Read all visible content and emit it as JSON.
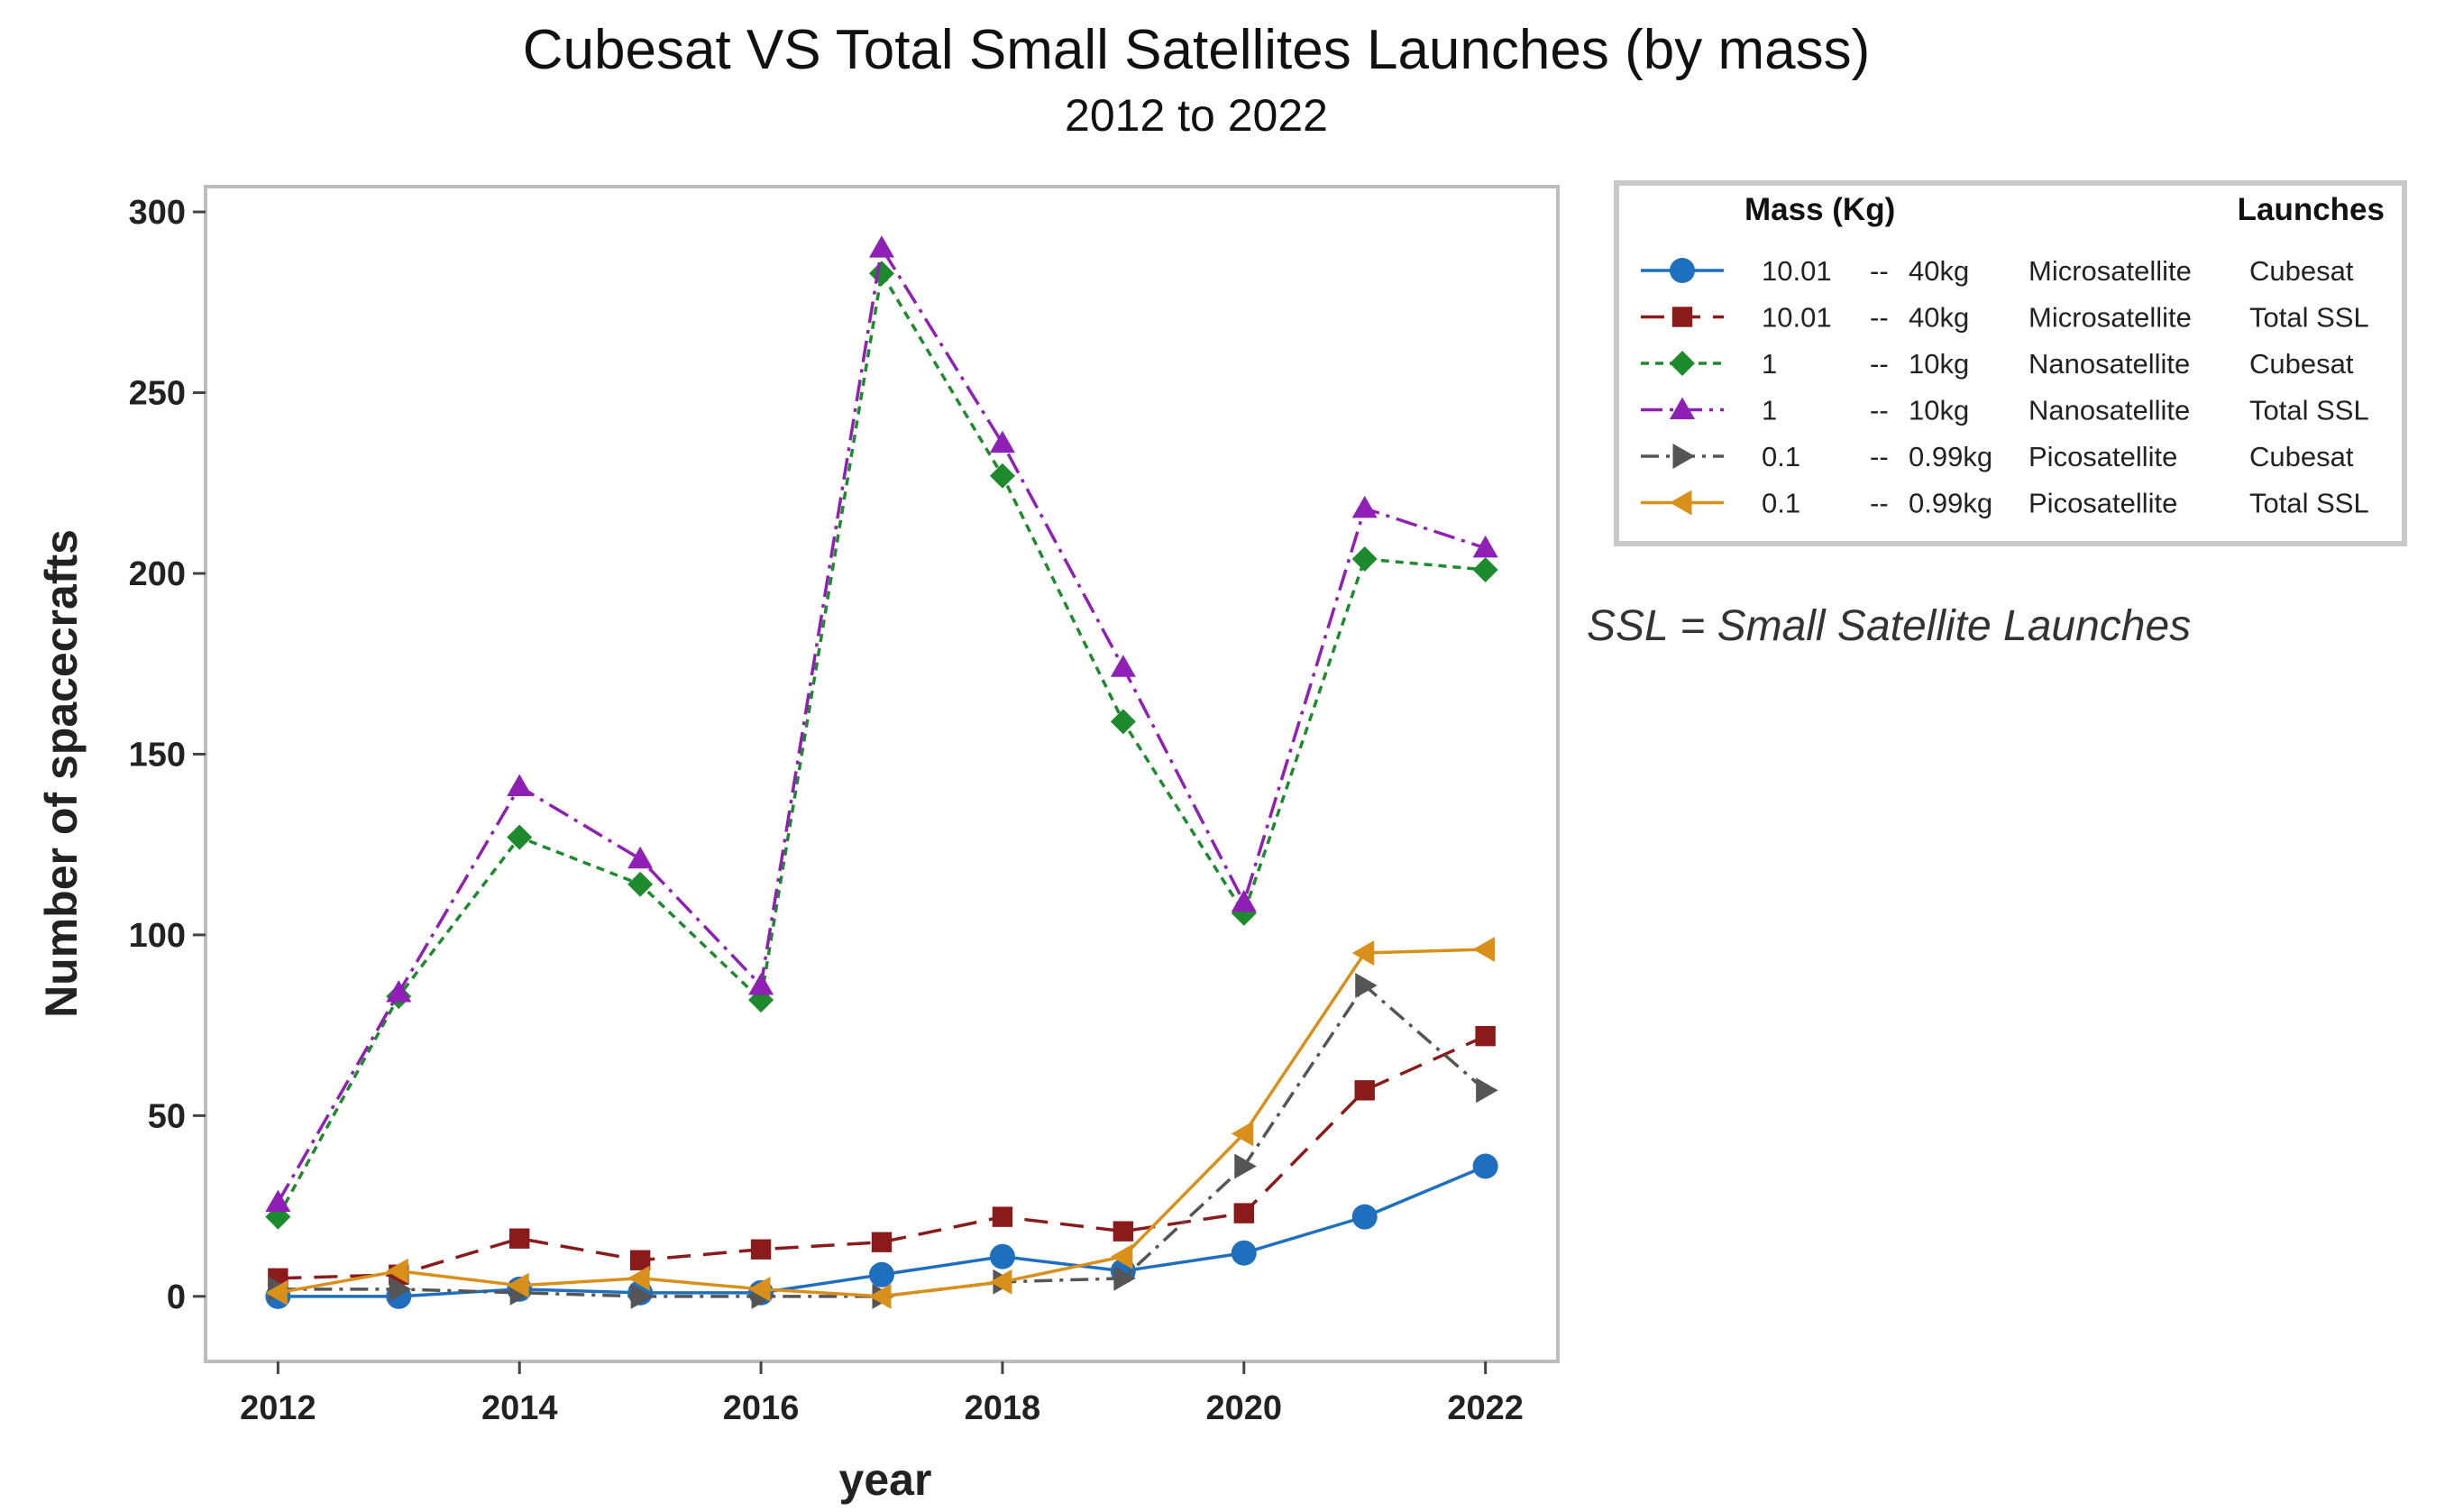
{
  "chart_data": {
    "type": "line",
    "title": "Cubesat VS Total Small Satellites Launches (by mass)",
    "subtitle": "2012 to 2022",
    "xlabel": "year",
    "ylabel": "Number of spacecrafts",
    "x": [
      2012,
      2013,
      2014,
      2015,
      2016,
      2017,
      2018,
      2019,
      2020,
      2021,
      2022
    ],
    "x_ticks": [
      "2012",
      "2014",
      "2016",
      "2018",
      "2020",
      "2022"
    ],
    "y_ticks": [
      "0",
      "50",
      "100",
      "150",
      "200",
      "250",
      "300"
    ],
    "xlim": [
      2011.4,
      2022.6
    ],
    "ylim": [
      -18,
      307
    ],
    "legend": {
      "position": "right",
      "header_mass": "Mass (Kg)",
      "header_launches": "Launches"
    },
    "note": "SSL = Small Satellite Launches",
    "series": [
      {
        "min": "10.01",
        "sep": "--",
        "max": "40kg",
        "class": "Microsatellite",
        "launch": "Cubesat",
        "color": "#1f6fbf",
        "marker": "circle",
        "dash": "",
        "values": [
          0,
          0,
          2,
          1,
          1,
          6,
          11,
          7,
          12,
          22,
          36
        ]
      },
      {
        "min": "10.01",
        "sep": "--",
        "max": "40kg",
        "class": "Microsatellite",
        "launch": "Total SSL",
        "color": "#8b1a1a",
        "marker": "square",
        "dash": "26,14",
        "values": [
          5,
          6,
          16,
          10,
          13,
          15,
          22,
          18,
          23,
          57,
          72
        ]
      },
      {
        "min": "1",
        "sep": "--",
        "max": "10kg",
        "class": "Nanosatellite",
        "launch": "Cubesat",
        "color": "#1e8a2e",
        "marker": "diamond",
        "dash": "9,7",
        "values": [
          22,
          83,
          127,
          114,
          82,
          283,
          227,
          159,
          106,
          204,
          201
        ]
      },
      {
        "min": "1",
        "sep": "--",
        "max": "10kg",
        "class": "Nanosatellite",
        "launch": "Total SSL",
        "color": "#8f1fb5",
        "marker": "triangle-up",
        "dash": "24,8,4,8",
        "values": [
          26,
          84,
          141,
          121,
          86,
          290,
          236,
          174,
          109,
          218,
          207
        ]
      },
      {
        "min": "0.1",
        "sep": "--",
        "max": "0.99kg",
        "class": "Picosatellite",
        "launch": "Cubesat",
        "color": "#555555",
        "marker": "triangle-right",
        "dash": "20,8,4,8",
        "values": [
          2,
          2,
          1,
          0,
          0,
          0,
          4,
          5,
          36,
          86,
          57
        ]
      },
      {
        "min": "0.1",
        "sep": "--",
        "max": "0.99kg",
        "class": "Picosatellite",
        "launch": "Total SSL",
        "color": "#d9901a",
        "marker": "triangle-left",
        "dash": "",
        "values": [
          1,
          7,
          3,
          5,
          2,
          0,
          4,
          11,
          45,
          95,
          96
        ]
      }
    ]
  }
}
